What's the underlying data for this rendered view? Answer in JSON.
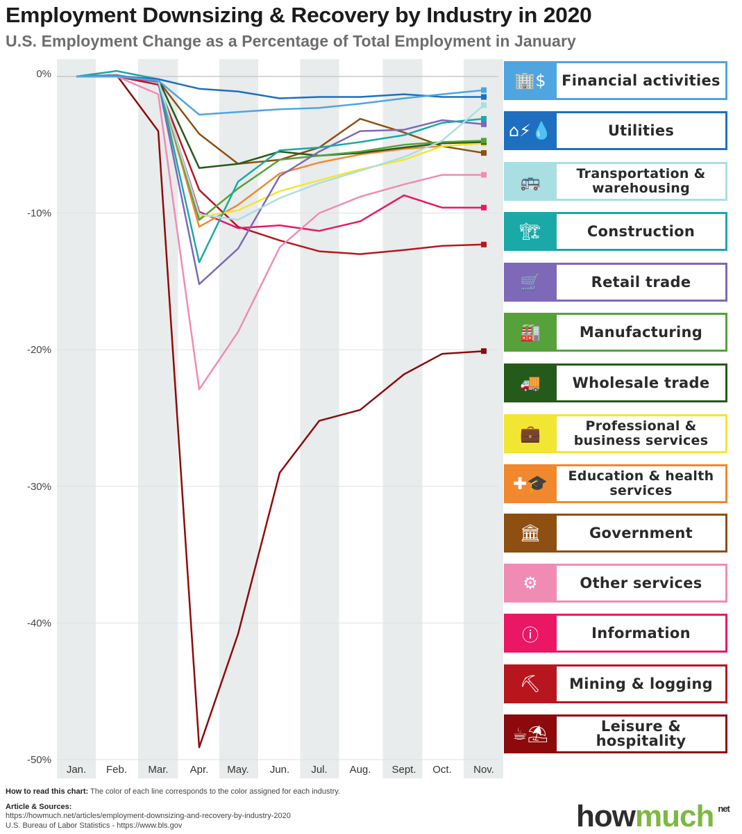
{
  "header": {
    "title": "Employment Downsizing & Recovery by Industry in 2020",
    "subtitle": "U.S. Employment Change as a Percentage of Total Employment in January"
  },
  "chart_data": {
    "type": "line",
    "title": "Employment Downsizing & Recovery by Industry in 2020",
    "subtitle": "U.S. Employment Change as a Percentage of Total Employment in January",
    "xlabel": "",
    "ylabel": "",
    "x": [
      "Jan.",
      "Feb.",
      "Mar.",
      "Apr.",
      "May.",
      "Jun.",
      "Jul.",
      "Aug.",
      "Sept.",
      "Oct.",
      "Nov."
    ],
    "ylim": [
      -50,
      0
    ],
    "yticks": [
      0,
      -10,
      -20,
      -30,
      -40,
      -50
    ],
    "ytick_labels": [
      "0%",
      "-10%",
      "-20%",
      "-30%",
      "-40%",
      "-50%"
    ],
    "grid": true,
    "legend_position": "right",
    "series": [
      {
        "name": "Financial activities",
        "color": "#4ea5e0",
        "values": [
          0,
          0,
          -0.3,
          -2.8,
          -2.6,
          -2.4,
          -2.3,
          -2.0,
          -1.6,
          -1.3,
          -1.0
        ]
      },
      {
        "name": "Utilities",
        "color": "#1e6fbf",
        "values": [
          0,
          0,
          -0.2,
          -0.9,
          -1.1,
          -1.6,
          -1.5,
          -1.5,
          -1.3,
          -1.5,
          -1.5
        ]
      },
      {
        "name": "Transportation & warehousing",
        "color": "#a9dfe2",
        "values": [
          0,
          0,
          -0.3,
          -10.1,
          -10.5,
          -8.9,
          -7.8,
          -6.9,
          -5.9,
          -4.7,
          -2.1
        ]
      },
      {
        "name": "Construction",
        "color": "#1aa9a6",
        "values": [
          0,
          0.4,
          -0.2,
          -13.6,
          -7.7,
          -5.4,
          -5.2,
          -4.8,
          -4.3,
          -3.4,
          -3.1
        ]
      },
      {
        "name": "Retail trade",
        "color": "#7e68b8",
        "values": [
          0,
          0.1,
          -0.4,
          -15.2,
          -12.6,
          -7.3,
          -5.5,
          -4.0,
          -3.9,
          -3.2,
          -3.5
        ]
      },
      {
        "name": "Manufacturing",
        "color": "#56a13a",
        "values": [
          0,
          0,
          -0.3,
          -10.5,
          -8.2,
          -6.1,
          -5.8,
          -5.5,
          -5.0,
          -4.8,
          -4.7
        ]
      },
      {
        "name": "Wholesale trade",
        "color": "#245a1a",
        "values": [
          0,
          0,
          -0.2,
          -6.7,
          -6.4,
          -5.5,
          -5.8,
          -5.6,
          -5.2,
          -4.9,
          -4.8
        ]
      },
      {
        "name": "Professional & business services",
        "color": "#f3e632",
        "values": [
          0,
          0,
          -0.3,
          -10.3,
          -9.8,
          -8.4,
          -7.6,
          -6.8,
          -6.1,
          -5.1,
          -4.9
        ]
      },
      {
        "name": "Education & health services",
        "color": "#f2882e",
        "values": [
          0,
          0,
          -0.3,
          -11.0,
          -9.4,
          -7.1,
          -6.3,
          -5.7,
          -5.3,
          -5.1,
          -4.9
        ]
      },
      {
        "name": "Government",
        "color": "#8e4f12",
        "values": [
          0,
          0,
          -0.3,
          -4.2,
          -6.4,
          -6.1,
          -5.2,
          -3.1,
          -4.1,
          -5.1,
          -5.6
        ]
      },
      {
        "name": "Other services",
        "color": "#f08cb4",
        "values": [
          0,
          0,
          -1.3,
          -22.9,
          -18.7,
          -12.5,
          -10.0,
          -8.8,
          -7.9,
          -7.2,
          -7.2
        ]
      },
      {
        "name": "Information",
        "color": "#ea1864",
        "values": [
          0,
          0,
          -0.4,
          -9.9,
          -11.1,
          -10.9,
          -11.3,
          -10.6,
          -8.7,
          -9.6,
          -9.6
        ]
      },
      {
        "name": "Mining & logging",
        "color": "#b8161e",
        "values": [
          0,
          0,
          -0.6,
          -8.3,
          -11.0,
          -12.0,
          -12.8,
          -13.0,
          -12.7,
          -12.4,
          -12.3
        ]
      },
      {
        "name": "Leisure & hospitality",
        "color": "#8c0a0c",
        "values": [
          0,
          0.1,
          -4.0,
          -49.1,
          -40.8,
          -29.0,
          -25.2,
          -24.4,
          -21.8,
          -20.3,
          -20.1
        ]
      }
    ]
  },
  "legend": {
    "items": [
      {
        "label": "Financial activities",
        "icon": "buildings-dollar-icon",
        "glyph": "🏢$",
        "color": "#4ea5e0"
      },
      {
        "label": "Utilities",
        "icon": "house-utilities-icon",
        "glyph": "⌂⚡💧",
        "color": "#1e6fbf"
      },
      {
        "label": "Transportation & warehousing",
        "icon": "bus-car-icon",
        "glyph": "🚌",
        "color": "#a9dfe2"
      },
      {
        "label": "Construction",
        "icon": "crane-building-icon",
        "glyph": "🏗",
        "color": "#1aa9a6"
      },
      {
        "label": "Retail trade",
        "icon": "shopping-cart-icon",
        "glyph": "🛒",
        "color": "#7e68b8"
      },
      {
        "label": "Manufacturing",
        "icon": "factory-icon",
        "glyph": "🏭",
        "color": "#56a13a"
      },
      {
        "label": "Wholesale trade",
        "icon": "delivery-truck-icon",
        "glyph": "🚚",
        "color": "#245a1a"
      },
      {
        "label": "Professional & business services",
        "icon": "briefcase-hand-icon",
        "glyph": "💼",
        "color": "#f3e632"
      },
      {
        "label": "Education & health services",
        "icon": "hospital-graduation-cap-icon",
        "glyph": "✚🎓",
        "color": "#f2882e"
      },
      {
        "label": "Government",
        "icon": "government-building-icon",
        "glyph": "🏛",
        "color": "#8e4f12"
      },
      {
        "label": "Other services",
        "icon": "gears-hand-icon",
        "glyph": "⚙",
        "color": "#f08cb4"
      },
      {
        "label": "Information",
        "icon": "info-icon",
        "glyph": "ⓘ",
        "color": "#ea1864"
      },
      {
        "label": "Mining & logging",
        "icon": "ore-logs-icon",
        "glyph": "⛏",
        "color": "#b8161e"
      },
      {
        "label": "Leisure & hospitality",
        "icon": "coffee-beach-icon",
        "glyph": "☕⛱",
        "color": "#8c0a0c"
      }
    ]
  },
  "footer": {
    "how_to_read_label": "How to read this chart:",
    "how_to_read_text": " The color of each line corresponds to the color assigned for each industry.",
    "sources_label": "Article & Sources:",
    "source_1": "https://howmuch.net/articles/employment-downsizing-and-recovery-by-industry-2020",
    "source_2": "U.S. Bureau of Labor Statistics - https://www.bls.gov"
  },
  "logo": {
    "how": "how",
    "much": "much",
    "net": "net"
  }
}
